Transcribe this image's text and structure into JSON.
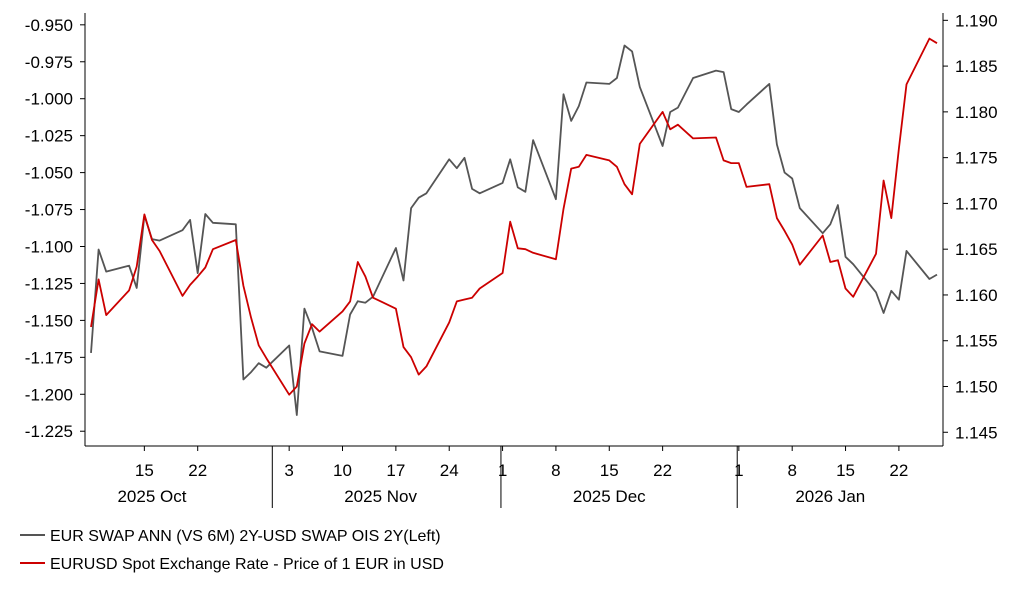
{
  "chart_data": {
    "type": "line",
    "x_ticks": [
      "15",
      "22",
      "3",
      "10",
      "17",
      "24",
      "1",
      "8",
      "15",
      "22",
      "1",
      "8",
      "15",
      "22"
    ],
    "month_labels": [
      "2025 Oct",
      "2025 Nov",
      "2025 Dec",
      "2026 Jan"
    ],
    "y_left": {
      "ticks": [
        "-0.950",
        "-0.975",
        "-1.000",
        "-1.025",
        "-1.050",
        "-1.075",
        "-1.100",
        "-1.125",
        "-1.150",
        "-1.175",
        "-1.200",
        "-1.225"
      ],
      "range": [
        -1.235,
        -0.942
      ]
    },
    "y_right": {
      "ticks": [
        "1.190",
        "1.185",
        "1.180",
        "1.175",
        "1.170",
        "1.165",
        "1.160",
        "1.155",
        "1.150",
        "1.145"
      ],
      "range": [
        1.1435,
        1.1908
      ]
    },
    "series": [
      {
        "name": "EUR SWAP ANN (VS 6M) 2Y-USD SWAP OIS 2Y(Left)",
        "axis": "left",
        "color": "#555555",
        "points": [
          [
            "2025-10-08",
            -1.172
          ],
          [
            "2025-10-09",
            -1.102
          ],
          [
            "2025-10-10",
            -1.117
          ],
          [
            "2025-10-13",
            -1.113
          ],
          [
            "2025-10-14",
            -1.128
          ],
          [
            "2025-10-15",
            -1.079
          ],
          [
            "2025-10-16",
            -1.095
          ],
          [
            "2025-10-17",
            -1.096
          ],
          [
            "2025-10-20",
            -1.089
          ],
          [
            "2025-10-21",
            -1.082
          ],
          [
            "2025-10-22",
            -1.118
          ],
          [
            "2025-10-23",
            -1.078
          ],
          [
            "2025-10-24",
            -1.084
          ],
          [
            "2025-10-27",
            -1.085
          ],
          [
            "2025-10-28",
            -1.19
          ],
          [
            "2025-10-29",
            -1.185
          ],
          [
            "2025-10-30",
            -1.179
          ],
          [
            "2025-10-31",
            -1.182
          ],
          [
            "2025-11-03",
            -1.167
          ],
          [
            "2025-11-04",
            -1.214
          ],
          [
            "2025-11-05",
            -1.142
          ],
          [
            "2025-11-06",
            -1.155
          ],
          [
            "2025-11-07",
            -1.171
          ],
          [
            "2025-11-10",
            -1.174
          ],
          [
            "2025-11-11",
            -1.146
          ],
          [
            "2025-11-12",
            -1.137
          ],
          [
            "2025-11-13",
            -1.138
          ],
          [
            "2025-11-14",
            -1.134
          ],
          [
            "2025-11-17",
            -1.101
          ],
          [
            "2025-11-18",
            -1.123
          ],
          [
            "2025-11-19",
            -1.074
          ],
          [
            "2025-11-20",
            -1.067
          ],
          [
            "2025-11-21",
            -1.064
          ],
          [
            "2025-11-24",
            -1.041
          ],
          [
            "2025-11-25",
            -1.047
          ],
          [
            "2025-11-26",
            -1.04
          ],
          [
            "2025-11-27",
            -1.061
          ],
          [
            "2025-11-28",
            -1.064
          ],
          [
            "2025-12-01",
            -1.057
          ],
          [
            "2025-12-02",
            -1.041
          ],
          [
            "2025-12-03",
            -1.06
          ],
          [
            "2025-12-04",
            -1.063
          ],
          [
            "2025-12-05",
            -1.028
          ],
          [
            "2025-12-08",
            -1.068
          ],
          [
            "2025-12-09",
            -0.997
          ],
          [
            "2025-12-10",
            -1.015
          ],
          [
            "2025-12-11",
            -1.005
          ],
          [
            "2025-12-12",
            -0.989
          ],
          [
            "2025-12-15",
            -0.99
          ],
          [
            "2025-12-16",
            -0.986
          ],
          [
            "2025-12-17",
            -0.964
          ],
          [
            "2025-12-18",
            -0.968
          ],
          [
            "2025-12-19",
            -0.992
          ],
          [
            "2025-12-22",
            -1.032
          ],
          [
            "2025-12-23",
            -1.009
          ],
          [
            "2025-12-24",
            -1.006
          ],
          [
            "2025-12-26",
            -0.986
          ],
          [
            "2025-12-29",
            -0.981
          ],
          [
            "2025-12-30",
            -0.982
          ],
          [
            "2025-12-31",
            -1.007
          ],
          [
            "2026-01-01",
            -1.009
          ],
          [
            "2026-01-02",
            -1.004
          ],
          [
            "2026-01-05",
            -0.99
          ],
          [
            "2026-01-06",
            -1.031
          ],
          [
            "2026-01-07",
            -1.05
          ],
          [
            "2026-01-08",
            -1.054
          ],
          [
            "2026-01-09",
            -1.074
          ],
          [
            "2026-01-12",
            -1.091
          ],
          [
            "2026-01-13",
            -1.085
          ],
          [
            "2026-01-14",
            -1.072
          ],
          [
            "2026-01-15",
            -1.107
          ],
          [
            "2026-01-16",
            -1.112
          ],
          [
            "2026-01-19",
            -1.131
          ],
          [
            "2026-01-20",
            -1.145
          ],
          [
            "2026-01-21",
            -1.13
          ],
          [
            "2026-01-22",
            -1.136
          ],
          [
            "2026-01-23",
            -1.103
          ],
          [
            "2026-01-26",
            -1.122
          ],
          [
            "2026-01-27",
            -1.119
          ]
        ]
      },
      {
        "name": "EURUSD Spot Exchange Rate - Price of 1 EUR in USD",
        "axis": "right",
        "color": "#cc0000",
        "points": [
          [
            "2025-10-08",
            1.1565
          ],
          [
            "2025-10-09",
            1.1617
          ],
          [
            "2025-10-10",
            1.1578
          ],
          [
            "2025-10-13",
            1.1605
          ],
          [
            "2025-10-14",
            1.1631
          ],
          [
            "2025-10-15",
            1.1688
          ],
          [
            "2025-10-16",
            1.166
          ],
          [
            "2025-10-17",
            1.1648
          ],
          [
            "2025-10-20",
            1.1599
          ],
          [
            "2025-10-21",
            1.1611
          ],
          [
            "2025-10-22",
            1.162
          ],
          [
            "2025-10-23",
            1.163
          ],
          [
            "2025-10-24",
            1.165
          ],
          [
            "2025-10-27",
            1.166
          ],
          [
            "2025-10-28",
            1.161
          ],
          [
            "2025-10-29",
            1.1575
          ],
          [
            "2025-10-30",
            1.1545
          ],
          [
            "2025-10-31",
            1.1531
          ],
          [
            "2025-11-03",
            1.1491
          ],
          [
            "2025-11-04",
            1.15
          ],
          [
            "2025-11-05",
            1.1547
          ],
          [
            "2025-11-06",
            1.1568
          ],
          [
            "2025-11-07",
            1.156
          ],
          [
            "2025-11-10",
            1.1582
          ],
          [
            "2025-11-11",
            1.1593
          ],
          [
            "2025-11-12",
            1.1636
          ],
          [
            "2025-11-13",
            1.162
          ],
          [
            "2025-11-14",
            1.1597
          ],
          [
            "2025-11-17",
            1.1585
          ],
          [
            "2025-11-18",
            1.1543
          ],
          [
            "2025-11-19",
            1.1532
          ],
          [
            "2025-11-20",
            1.1513
          ],
          [
            "2025-11-21",
            1.1522
          ],
          [
            "2025-11-24",
            1.157
          ],
          [
            "2025-11-25",
            1.1593
          ],
          [
            "2025-11-26",
            1.1595
          ],
          [
            "2025-11-27",
            1.1597
          ],
          [
            "2025-11-28",
            1.1607
          ],
          [
            "2025-12-01",
            1.1624
          ],
          [
            "2025-12-02",
            1.168
          ],
          [
            "2025-12-03",
            1.1651
          ],
          [
            "2025-12-04",
            1.165
          ],
          [
            "2025-12-05",
            1.1646
          ],
          [
            "2025-12-08",
            1.1639
          ],
          [
            "2025-12-09",
            1.1694
          ],
          [
            "2025-12-10",
            1.1738
          ],
          [
            "2025-12-11",
            1.174
          ],
          [
            "2025-12-12",
            1.1753
          ],
          [
            "2025-12-15",
            1.1747
          ],
          [
            "2025-12-16",
            1.174
          ],
          [
            "2025-12-17",
            1.1721
          ],
          [
            "2025-12-18",
            1.171
          ],
          [
            "2025-12-19",
            1.1765
          ],
          [
            "2025-12-22",
            1.18
          ],
          [
            "2025-12-23",
            1.1781
          ],
          [
            "2025-12-24",
            1.1786
          ],
          [
            "2025-12-26",
            1.1771
          ],
          [
            "2025-12-29",
            1.1772
          ],
          [
            "2025-12-30",
            1.1747
          ],
          [
            "2025-12-31",
            1.1744
          ],
          [
            "2026-01-01",
            1.1744
          ],
          [
            "2026-01-02",
            1.1718
          ],
          [
            "2026-01-05",
            1.1721
          ],
          [
            "2026-01-06",
            1.1684
          ],
          [
            "2026-01-07",
            1.167
          ],
          [
            "2026-01-08",
            1.1655
          ],
          [
            "2026-01-09",
            1.1633
          ],
          [
            "2026-01-12",
            1.1665
          ],
          [
            "2026-01-13",
            1.1636
          ],
          [
            "2026-01-14",
            1.1638
          ],
          [
            "2026-01-15",
            1.1607
          ],
          [
            "2026-01-16",
            1.1598
          ],
          [
            "2026-01-19",
            1.1645
          ],
          [
            "2026-01-20",
            1.1725
          ],
          [
            "2026-01-21",
            1.1684
          ],
          [
            "2026-01-22",
            1.176
          ],
          [
            "2026-01-23",
            1.183
          ],
          [
            "2026-01-26",
            1.188
          ],
          [
            "2026-01-27",
            1.1875
          ]
        ]
      }
    ],
    "legend_position": "bottom-left"
  }
}
